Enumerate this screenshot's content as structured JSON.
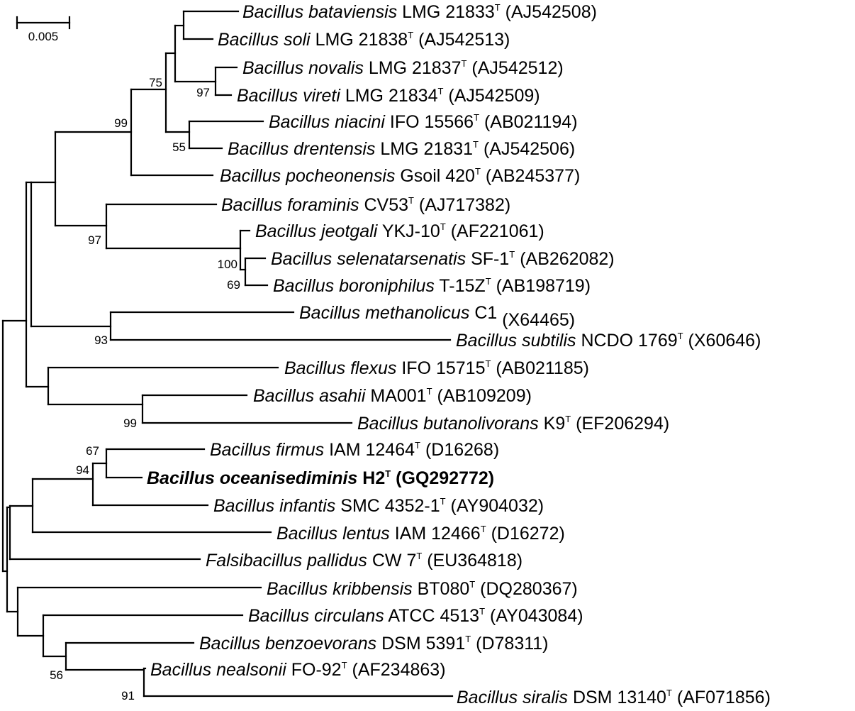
{
  "scale_bar": {
    "label": "0.005"
  },
  "taxa": [
    {
      "species": "Bacillus bataviensis",
      "strain": "LMG 21833",
      "type_strain": "T",
      "accession": "(AJ542508)",
      "bold": false
    },
    {
      "species": "Bacillus soli",
      "strain": "LMG 21838",
      "type_strain": "T",
      "accession": "(AJ542513)",
      "bold": false
    },
    {
      "species": "Bacillus novalis",
      "strain": "LMG 21837",
      "type_strain": "T",
      "accession": "(AJ542512)",
      "bold": false
    },
    {
      "species": "Bacillus vireti",
      "strain": "LMG 21834",
      "type_strain": "T",
      "accession": "(AJ542509)",
      "bold": false
    },
    {
      "species": "Bacillus niacini",
      "strain": "IFO 15566",
      "type_strain": "T",
      "accession": "(AB021194)",
      "bold": false
    },
    {
      "species": "Bacillus drentensis",
      "strain": "LMG 21831",
      "type_strain": "T",
      "accession": "(AJ542506)",
      "bold": false
    },
    {
      "species": "Bacillus pocheonensis",
      "strain": "Gsoil 420",
      "type_strain": "T",
      "accession": "(AB245377)",
      "bold": false
    },
    {
      "species": "Bacillus foraminis",
      "strain": "CV53",
      "type_strain": "T",
      "accession": "(AJ717382)",
      "bold": false
    },
    {
      "species": "Bacillus jeotgali",
      "strain": "YKJ-10",
      "type_strain": "T",
      "accession": "(AF221061)",
      "bold": false
    },
    {
      "species": "Bacillus selenatarsenatis",
      "strain": "SF-1",
      "type_strain": "T",
      "accession": "(AB262082)",
      "bold": false
    },
    {
      "species": "Bacillus boroniphilus",
      "strain": "T-15Z",
      "type_strain": "T",
      "accession": "(AB198719)",
      "bold": false
    },
    {
      "species": "Bacillus methanolicus",
      "strain": "C1",
      "type_strain": "",
      "accession": "(X64465)",
      "bold": false
    },
    {
      "species": "Bacillus subtilis",
      "strain": "NCDO 1769",
      "type_strain": "T",
      "accession": "(X60646)",
      "bold": false
    },
    {
      "species": "Bacillus flexus",
      "strain": "IFO 15715",
      "type_strain": "T",
      "accession": "(AB021185)",
      "bold": false
    },
    {
      "species": "Bacillus asahii",
      "strain": "MA001",
      "type_strain": "T",
      "accession": "(AB109209)",
      "bold": false
    },
    {
      "species": "Bacillus butanolivorans",
      "strain": "K9",
      "type_strain": "T",
      "accession": "(EF206294)",
      "bold": false
    },
    {
      "species": "Bacillus firmus",
      "strain": "IAM 12464",
      "type_strain": "T",
      "accession": "(D16268)",
      "bold": false
    },
    {
      "species": "Bacillus oceanisediminis",
      "strain": "H2",
      "type_strain": "T",
      "accession": "(GQ292772)",
      "bold": true
    },
    {
      "species": "Bacillus infantis",
      "strain": "SMC 4352-1",
      "type_strain": "T",
      "accession": "(AY904032)",
      "bold": false
    },
    {
      "species": "Bacillus lentus",
      "strain": "IAM 12466",
      "type_strain": "T",
      "accession": "(D16272)",
      "bold": false
    },
    {
      "species": "Falsibacillus pallidus",
      "strain": "CW 7",
      "type_strain": "T",
      "accession": "(EU364818)",
      "bold": false
    },
    {
      "species": "Bacillus kribbensis",
      "strain": "BT080",
      "type_strain": "T",
      "accession": "(DQ280367)",
      "bold": false
    },
    {
      "species": "Bacillus circulans",
      "strain": "ATCC 4513",
      "type_strain": "T",
      "accession": "(AY043084)",
      "bold": false
    },
    {
      "species": "Bacillus benzoevorans",
      "strain": "DSM 5391",
      "type_strain": "T",
      "accession": "(D78311)",
      "bold": false
    },
    {
      "species": "Bacillus nealsonii",
      "strain": "FO-92",
      "type_strain": "T",
      "accession": "(AF234863)",
      "bold": false
    },
    {
      "species": "Bacillus siralis",
      "strain": "DSM 13140",
      "type_strain": "T",
      "accession": "(AF071856)",
      "bold": false
    }
  ],
  "bootstrap": [
    "75",
    "97",
    "99",
    "55",
    "97",
    "100",
    "69",
    "93",
    "99",
    "67",
    "94",
    "56",
    "91"
  ]
}
